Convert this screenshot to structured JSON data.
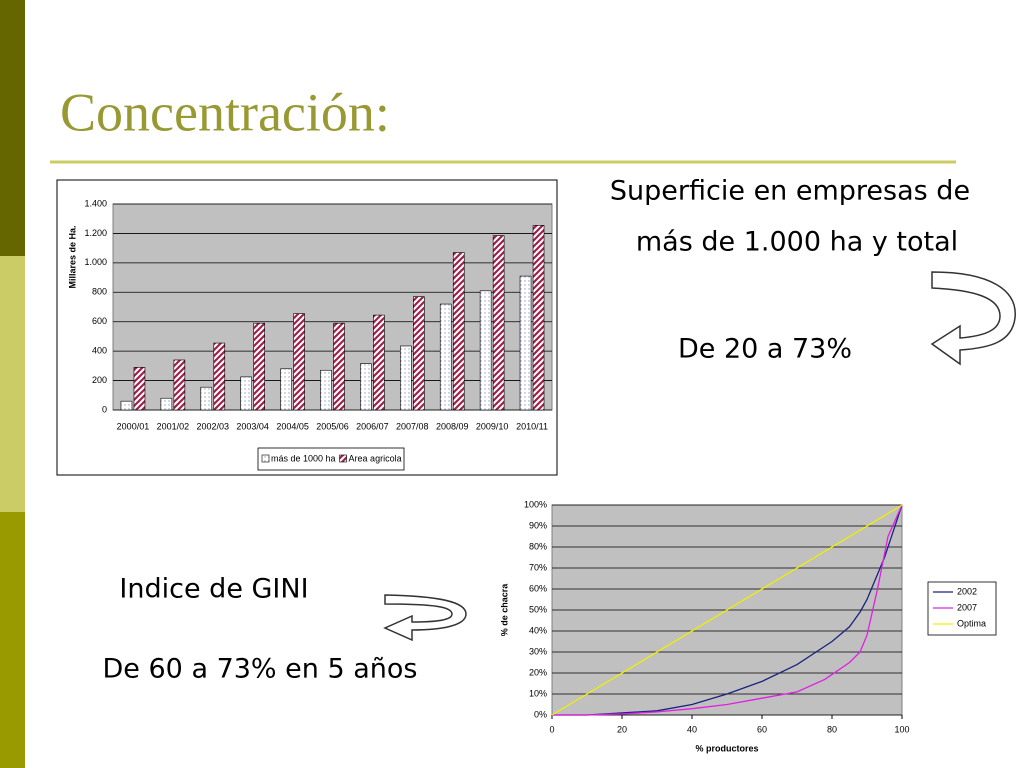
{
  "slide": {
    "title": "Concentración:",
    "texts": [
      "Superficie en empresas de",
      "más de 1.000 ha y total",
      "De 20 a 73%",
      "Indice de GINI",
      "De 60 a 73% en 5 años"
    ]
  },
  "chart_data": [
    {
      "type": "bar",
      "y_label": "Millares de Ha.",
      "categories": [
        "2000/01",
        "2001/02",
        "2002/03",
        "2003/04",
        "2004/05",
        "2005/06",
        "2006/07",
        "2007/08",
        "2008/09",
        "2009/10",
        "2010/11"
      ],
      "series": [
        {
          "name": "más de 1000 ha",
          "color": "#8f9bd3",
          "values": [
            60,
            80,
            155,
            225,
            280,
            270,
            315,
            435,
            720,
            810,
            910
          ]
        },
        {
          "name": "Area agricola",
          "color": "#a0204a",
          "values": [
            290,
            340,
            455,
            590,
            655,
            590,
            645,
            770,
            1070,
            1185,
            1255
          ]
        }
      ],
      "ylim": [
        0,
        1400
      ],
      "yticks": [
        0,
        200,
        400,
        600,
        800,
        {
          "value": 1000,
          "label": "1.000"
        },
        {
          "value": 1200,
          "label": "1.200"
        },
        {
          "value": 1400,
          "label": "1.400"
        }
      ],
      "grid": true,
      "legend": "bottom"
    },
    {
      "type": "line",
      "x_label": "% productores",
      "y_label": "% de chacra",
      "series": [
        {
          "name": "2002",
          "color": "#1a237e",
          "x": [
            0,
            10,
            20,
            30,
            40,
            50,
            60,
            70,
            80,
            85,
            88,
            90,
            95,
            100
          ],
          "values": [
            0,
            0,
            1,
            2,
            5,
            10,
            16,
            24,
            35,
            42,
            49,
            55,
            75,
            100
          ]
        },
        {
          "name": "2007",
          "color": "#e020e0",
          "x": [
            0,
            10,
            20,
            30,
            40,
            50,
            60,
            70,
            78,
            85,
            88,
            90,
            93,
            96,
            100
          ],
          "values": [
            0,
            0,
            0.5,
            1.5,
            3,
            5,
            8,
            11,
            17,
            25,
            30,
            38,
            60,
            85,
            100
          ]
        },
        {
          "name": "Optima",
          "color": "#f0f000",
          "x": [
            0,
            100
          ],
          "values": [
            0,
            100
          ]
        }
      ],
      "xlim": [
        0,
        100
      ],
      "xticks": [
        0,
        20,
        40,
        60,
        80,
        100
      ],
      "ylim": [
        0,
        100
      ],
      "yticks": [
        {
          "value": 0,
          "label": "0%"
        },
        {
          "value": 10,
          "label": "10%"
        },
        {
          "value": 20,
          "label": "20%"
        },
        {
          "value": 30,
          "label": "30%"
        },
        {
          "value": 40,
          "label": "40%"
        },
        {
          "value": 50,
          "label": "50%"
        },
        {
          "value": 60,
          "label": "60%"
        },
        {
          "value": 70,
          "label": "70%"
        },
        {
          "value": 80,
          "label": "80%"
        },
        {
          "value": 90,
          "label": "90%"
        },
        {
          "value": 100,
          "label": "100%"
        }
      ],
      "grid": true,
      "legend": "right"
    }
  ]
}
